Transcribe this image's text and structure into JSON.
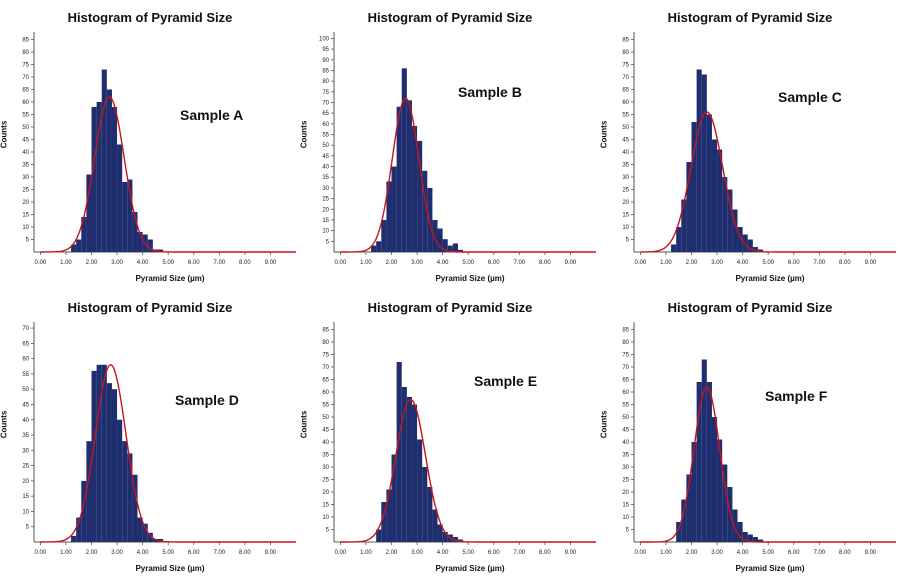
{
  "colors": {
    "bar": "#1f2e6e",
    "fit": "#c8141c",
    "axis": "#555555"
  },
  "chart_data": [
    {
      "type": "bar",
      "title": "Histogram of Pyramid Size",
      "annotation": "Sample A",
      "xlabel": "Pyramid Size (µm)",
      "ylabel": "Counts",
      "xlim": [
        -0.25,
        10
      ],
      "ylim": [
        0,
        88
      ],
      "xticks": [
        "0.00",
        "1.00",
        "2.00",
        "3.00",
        "4.00",
        "5.00",
        "6.00",
        "7.00",
        "8.00",
        "9.00"
      ],
      "yticks": [
        5,
        10,
        15,
        20,
        25,
        30,
        35,
        40,
        45,
        50,
        55,
        60,
        65,
        70,
        75,
        80,
        85
      ],
      "bin_width": 0.2,
      "bins": [
        [
          1.2,
          3
        ],
        [
          1.4,
          5
        ],
        [
          1.6,
          14
        ],
        [
          1.8,
          31
        ],
        [
          2.0,
          58
        ],
        [
          2.2,
          60
        ],
        [
          2.4,
          73
        ],
        [
          2.6,
          65
        ],
        [
          2.8,
          58
        ],
        [
          3.0,
          43
        ],
        [
          3.2,
          28
        ],
        [
          3.4,
          29
        ],
        [
          3.6,
          16
        ],
        [
          3.8,
          8
        ],
        [
          4.0,
          7
        ],
        [
          4.2,
          5
        ],
        [
          4.4,
          1
        ],
        [
          4.6,
          1
        ]
      ],
      "fit": {
        "mean": 2.7,
        "sd": 0.58,
        "peak": 62
      }
    },
    {
      "type": "bar",
      "title": "Histogram of Pyramid Size",
      "annotation": "Sample B",
      "xlabel": "Pyramid Size (µm)",
      "ylabel": "Counts",
      "xlim": [
        -0.25,
        10
      ],
      "ylim": [
        0,
        103
      ],
      "xticks": [
        "0.00",
        "1.00",
        "2.00",
        "3.00",
        "4.00",
        "5.00",
        "6.00",
        "7.00",
        "8.00",
        "9.00"
      ],
      "yticks": [
        5,
        10,
        15,
        20,
        25,
        30,
        35,
        40,
        45,
        50,
        55,
        60,
        65,
        70,
        75,
        80,
        85,
        90,
        95,
        100
      ],
      "bin_width": 0.2,
      "bins": [
        [
          1.2,
          3
        ],
        [
          1.4,
          5
        ],
        [
          1.6,
          15
        ],
        [
          1.8,
          33
        ],
        [
          2.0,
          40
        ],
        [
          2.2,
          68
        ],
        [
          2.4,
          86
        ],
        [
          2.6,
          71
        ],
        [
          2.8,
          59
        ],
        [
          3.0,
          52
        ],
        [
          3.2,
          38
        ],
        [
          3.4,
          30
        ],
        [
          3.6,
          15
        ],
        [
          3.8,
          11
        ],
        [
          4.0,
          6
        ],
        [
          4.2,
          3
        ],
        [
          4.4,
          4
        ],
        [
          4.6,
          1
        ]
      ],
      "fit": {
        "mean": 2.55,
        "sd": 0.52,
        "peak": 72
      }
    },
    {
      "type": "bar",
      "title": "Histogram of Pyramid Size",
      "annotation": "Sample C",
      "xlabel": "Pyramid Size (µm)",
      "ylabel": "Counts",
      "xlim": [
        -0.25,
        10
      ],
      "ylim": [
        0,
        88
      ],
      "xticks": [
        "0.00",
        "1.00",
        "2.00",
        "3.00",
        "4.00",
        "5.00",
        "6.00",
        "7.00",
        "8.00",
        "9.00"
      ],
      "yticks": [
        5,
        10,
        15,
        20,
        25,
        30,
        35,
        40,
        45,
        50,
        55,
        60,
        65,
        70,
        75,
        80,
        85
      ],
      "bin_width": 0.2,
      "bins": [
        [
          1.2,
          3
        ],
        [
          1.4,
          10
        ],
        [
          1.6,
          21
        ],
        [
          1.8,
          36
        ],
        [
          2.0,
          52
        ],
        [
          2.2,
          73
        ],
        [
          2.4,
          71
        ],
        [
          2.6,
          55
        ],
        [
          2.8,
          45
        ],
        [
          3.0,
          41
        ],
        [
          3.2,
          30
        ],
        [
          3.4,
          25
        ],
        [
          3.6,
          17
        ],
        [
          3.8,
          10
        ],
        [
          4.0,
          7
        ],
        [
          4.2,
          5
        ],
        [
          4.4,
          2
        ],
        [
          4.6,
          1
        ]
      ],
      "fit": {
        "mean": 2.6,
        "sd": 0.62,
        "peak": 56
      }
    },
    {
      "type": "bar",
      "title": "Histogram of Pyramid Size",
      "annotation": "Sample D",
      "xlabel": "Pyramid Size (µm)",
      "ylabel": "Counts",
      "xlim": [
        -0.25,
        10
      ],
      "ylim": [
        0,
        72
      ],
      "xticks": [
        "0.00",
        "1.00",
        "2.00",
        "3.00",
        "4.00",
        "5.00",
        "6.00",
        "7.00",
        "8.00",
        "9.00"
      ],
      "yticks": [
        5,
        10,
        15,
        20,
        25,
        30,
        35,
        40,
        45,
        50,
        55,
        60,
        65,
        70
      ],
      "bin_width": 0.2,
      "bins": [
        [
          1.2,
          2
        ],
        [
          1.4,
          8
        ],
        [
          1.6,
          20
        ],
        [
          1.8,
          33
        ],
        [
          2.0,
          56
        ],
        [
          2.2,
          58
        ],
        [
          2.4,
          58
        ],
        [
          2.6,
          52
        ],
        [
          2.8,
          50
        ],
        [
          3.0,
          40
        ],
        [
          3.2,
          33
        ],
        [
          3.4,
          29
        ],
        [
          3.6,
          22
        ],
        [
          3.8,
          8
        ],
        [
          4.0,
          6
        ],
        [
          4.2,
          3
        ],
        [
          4.4,
          1
        ],
        [
          4.6,
          1
        ]
      ],
      "fit": {
        "mean": 2.75,
        "sd": 0.6,
        "peak": 58
      }
    },
    {
      "type": "bar",
      "title": "Histogram of Pyramid Size",
      "annotation": "Sample E",
      "xlabel": "Pyramid Size (µm)",
      "ylabel": "Counts",
      "xlim": [
        -0.25,
        10
      ],
      "ylim": [
        0,
        88
      ],
      "xticks": [
        "0.00",
        "1.00",
        "2.00",
        "3.00",
        "4.00",
        "5.00",
        "6.00",
        "7.00",
        "8.00",
        "9.00"
      ],
      "yticks": [
        5,
        10,
        15,
        20,
        25,
        30,
        35,
        40,
        45,
        50,
        55,
        60,
        65,
        70,
        75,
        80,
        85
      ],
      "bin_width": 0.2,
      "bins": [
        [
          1.4,
          5
        ],
        [
          1.6,
          16
        ],
        [
          1.8,
          21
        ],
        [
          2.0,
          35
        ],
        [
          2.2,
          72
        ],
        [
          2.4,
          62
        ],
        [
          2.6,
          58
        ],
        [
          2.8,
          55
        ],
        [
          3.0,
          41
        ],
        [
          3.2,
          30
        ],
        [
          3.4,
          22
        ],
        [
          3.6,
          13
        ],
        [
          3.8,
          7
        ],
        [
          4.0,
          4
        ],
        [
          4.2,
          3
        ],
        [
          4.4,
          2
        ],
        [
          4.6,
          1
        ]
      ],
      "fit": {
        "mean": 2.75,
        "sd": 0.58,
        "peak": 57
      }
    },
    {
      "type": "bar",
      "title": "Histogram of Pyramid Size",
      "annotation": "Sample F",
      "xlabel": "Pyramid Size (µm)",
      "ylabel": "Counts",
      "xlim": [
        -0.25,
        10
      ],
      "ylim": [
        0,
        88
      ],
      "xticks": [
        "0.00",
        "1.00",
        "2.00",
        "3.00",
        "4.00",
        "5.00",
        "6.00",
        "7.00",
        "8.00",
        "9.00"
      ],
      "yticks": [
        5,
        10,
        15,
        20,
        25,
        30,
        35,
        40,
        45,
        50,
        55,
        60,
        65,
        70,
        75,
        80,
        85
      ],
      "bin_width": 0.2,
      "bins": [
        [
          1.4,
          8
        ],
        [
          1.6,
          17
        ],
        [
          1.8,
          27
        ],
        [
          2.0,
          40
        ],
        [
          2.2,
          64
        ],
        [
          2.4,
          73
        ],
        [
          2.6,
          64
        ],
        [
          2.8,
          50
        ],
        [
          3.0,
          41
        ],
        [
          3.2,
          31
        ],
        [
          3.4,
          22
        ],
        [
          3.6,
          13
        ],
        [
          3.8,
          8
        ],
        [
          4.0,
          4
        ],
        [
          4.2,
          3
        ],
        [
          4.4,
          2
        ],
        [
          4.6,
          1
        ]
      ],
      "fit": {
        "mean": 2.6,
        "sd": 0.5,
        "peak": 62
      }
    }
  ]
}
